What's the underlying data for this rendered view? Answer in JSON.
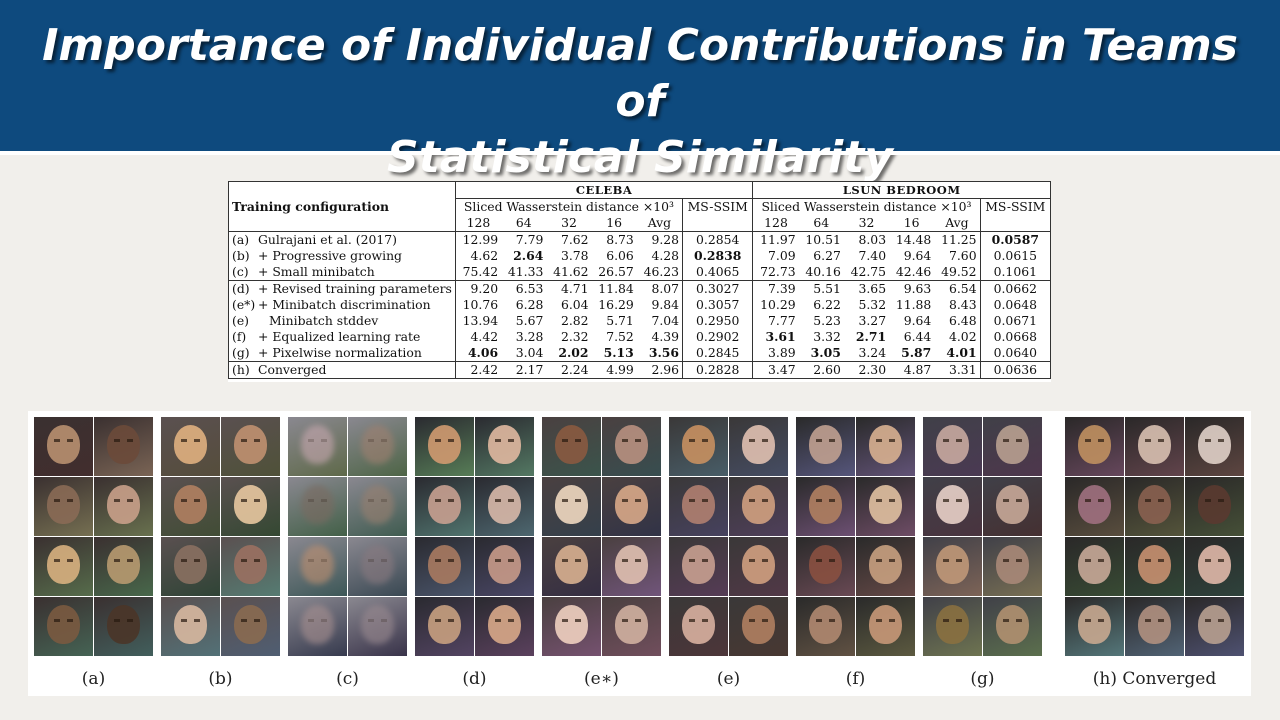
{
  "slide": {
    "title_line1": "Importance of Individual Contributions in Teams of",
    "title_line2": "Statistical Similarity"
  },
  "table": {
    "config_header": "Training configuration",
    "celeba": {
      "name": "CELEBA",
      "swd_label": "Sliced Wasserstein distance ×10³",
      "ms_ssim_label": "MS-SSIM"
    },
    "lsun": {
      "name": "LSUN BEDROOM",
      "swd_label": "Sliced Wasserstein distance ×10³",
      "ms_ssim_label": "MS-SSIM"
    },
    "columns": [
      "128",
      "64",
      "32",
      "16",
      "Avg"
    ],
    "rows": [
      {
        "tag": "(a)",
        "name": "Gulrajani et al. (2017)",
        "c": [
          "12.99",
          "7.79",
          "7.62",
          "8.73",
          "9.28"
        ],
        "cm": "0.2854",
        "l": [
          "11.97",
          "10.51",
          "8.03",
          "14.48",
          "11.25"
        ],
        "lm": "0.0587"
      },
      {
        "tag": "(b)",
        "name": "+ Progressive growing",
        "c": [
          "4.62",
          "2.64",
          "3.78",
          "6.06",
          "4.28"
        ],
        "cm": "0.2838",
        "l": [
          "7.09",
          "6.27",
          "7.40",
          "9.64",
          "7.60"
        ],
        "lm": "0.0615"
      },
      {
        "tag": "(c)",
        "name": "+ Small minibatch",
        "c": [
          "75.42",
          "41.33",
          "41.62",
          "26.57",
          "46.23"
        ],
        "cm": "0.4065",
        "l": [
          "72.73",
          "40.16",
          "42.75",
          "42.46",
          "49.52"
        ],
        "lm": "0.1061"
      },
      {
        "tag": "(d)",
        "name": "+ Revised training parameters",
        "c": [
          "9.20",
          "6.53",
          "4.71",
          "11.84",
          "8.07"
        ],
        "cm": "0.3027",
        "l": [
          "7.39",
          "5.51",
          "3.65",
          "9.63",
          "6.54"
        ],
        "lm": "0.0662"
      },
      {
        "tag": "(e*)",
        "name": "+ Minibatch discrimination",
        "c": [
          "10.76",
          "6.28",
          "6.04",
          "16.29",
          "9.84"
        ],
        "cm": "0.3057",
        "l": [
          "10.29",
          "6.22",
          "5.32",
          "11.88",
          "8.43"
        ],
        "lm": "0.0648"
      },
      {
        "tag": "(e)",
        "name": "Minibatch stddev",
        "c": [
          "13.94",
          "5.67",
          "2.82",
          "5.71",
          "7.04"
        ],
        "cm": "0.2950",
        "l": [
          "7.77",
          "5.23",
          "3.27",
          "9.64",
          "6.48"
        ],
        "lm": "0.0671"
      },
      {
        "tag": "(f)",
        "name": "+ Equalized learning rate",
        "c": [
          "4.42",
          "3.28",
          "2.32",
          "7.52",
          "4.39"
        ],
        "cm": "0.2902",
        "l": [
          "3.61",
          "3.32",
          "2.71",
          "6.44",
          "4.02"
        ],
        "lm": "0.0668"
      },
      {
        "tag": "(g)",
        "name": "+ Pixelwise normalization",
        "c": [
          "4.06",
          "3.04",
          "2.02",
          "5.13",
          "3.56"
        ],
        "cm": "0.2845",
        "l": [
          "3.89",
          "3.05",
          "3.24",
          "5.87",
          "4.01"
        ],
        "lm": "0.0640"
      },
      {
        "tag": "(h)",
        "name": "Converged",
        "c": [
          "2.42",
          "2.17",
          "2.24",
          "4.99",
          "2.96"
        ],
        "cm": "0.2828",
        "l": [
          "3.47",
          "2.60",
          "2.30",
          "4.87",
          "3.31"
        ],
        "lm": "0.0636"
      }
    ]
  },
  "panels": [
    {
      "caption": "(a)",
      "skins": [
        "#b89070",
        "#6b4a3a",
        "#8a6a55",
        "#c9a08a",
        "#d8b080",
        "#b89a70",
        "#7a5a40",
        "#4a3528"
      ]
    },
    {
      "caption": "(b)",
      "skins": [
        "#e0b080",
        "#c09070",
        "#b08060",
        "#e8c8a0",
        "#8a7060",
        "#9a7060",
        "#d8b8a0",
        "#8a6a50"
      ]
    },
    {
      "caption": "(c)",
      "skins": [
        "#c8a8b0",
        "#a08070",
        "#7a6a60",
        "#9a8070",
        "#c09070",
        "#8a7a80",
        "#a89090",
        "#9a8a90"
      ]
    },
    {
      "caption": "(d)",
      "skins": [
        "#d09a70",
        "#e0b8a0",
        "#c8a090",
        "#d8b8a8",
        "#a87a60",
        "#c89a88",
        "#c8a080",
        "#d8a888"
      ]
    },
    {
      "caption": "(e∗)",
      "skins": [
        "#8a5a40",
        "#b89080",
        "#f0d8c0",
        "#d8a888",
        "#d8b090",
        "#e0c0b0",
        "#f0d0c0",
        "#d0b0a0"
      ]
    },
    {
      "caption": "(e)",
      "skins": [
        "#c89060",
        "#e0c0b0",
        "#b08070",
        "#d0a080",
        "#c8a090",
        "#d0a080",
        "#d8b0a0",
        "#b08060"
      ]
    },
    {
      "caption": "(f)",
      "skins": [
        "#c0a090",
        "#d8b090",
        "#b08060",
        "#e0c0a0",
        "#8a5040",
        "#c8a080",
        "#b08870",
        "#c89878"
      ]
    },
    {
      "caption": "(g)",
      "skins": [
        "#c8a8a0",
        "#b8a090",
        "#e8d0c8",
        "#c8a898",
        "#c09878",
        "#a88878",
        "#8a7040",
        "#b09070"
      ]
    },
    {
      "caption": "(h) Converged",
      "skins": [
        "#c09060",
        "#d8c0b0",
        "#e0d0c8",
        "#a07080",
        "#8a6050",
        "#5a3a30",
        "#c8a898",
        "#c89070",
        "#e0b8a8",
        "#c8a890",
        "#b09080",
        "#b8a090"
      ]
    }
  ]
}
